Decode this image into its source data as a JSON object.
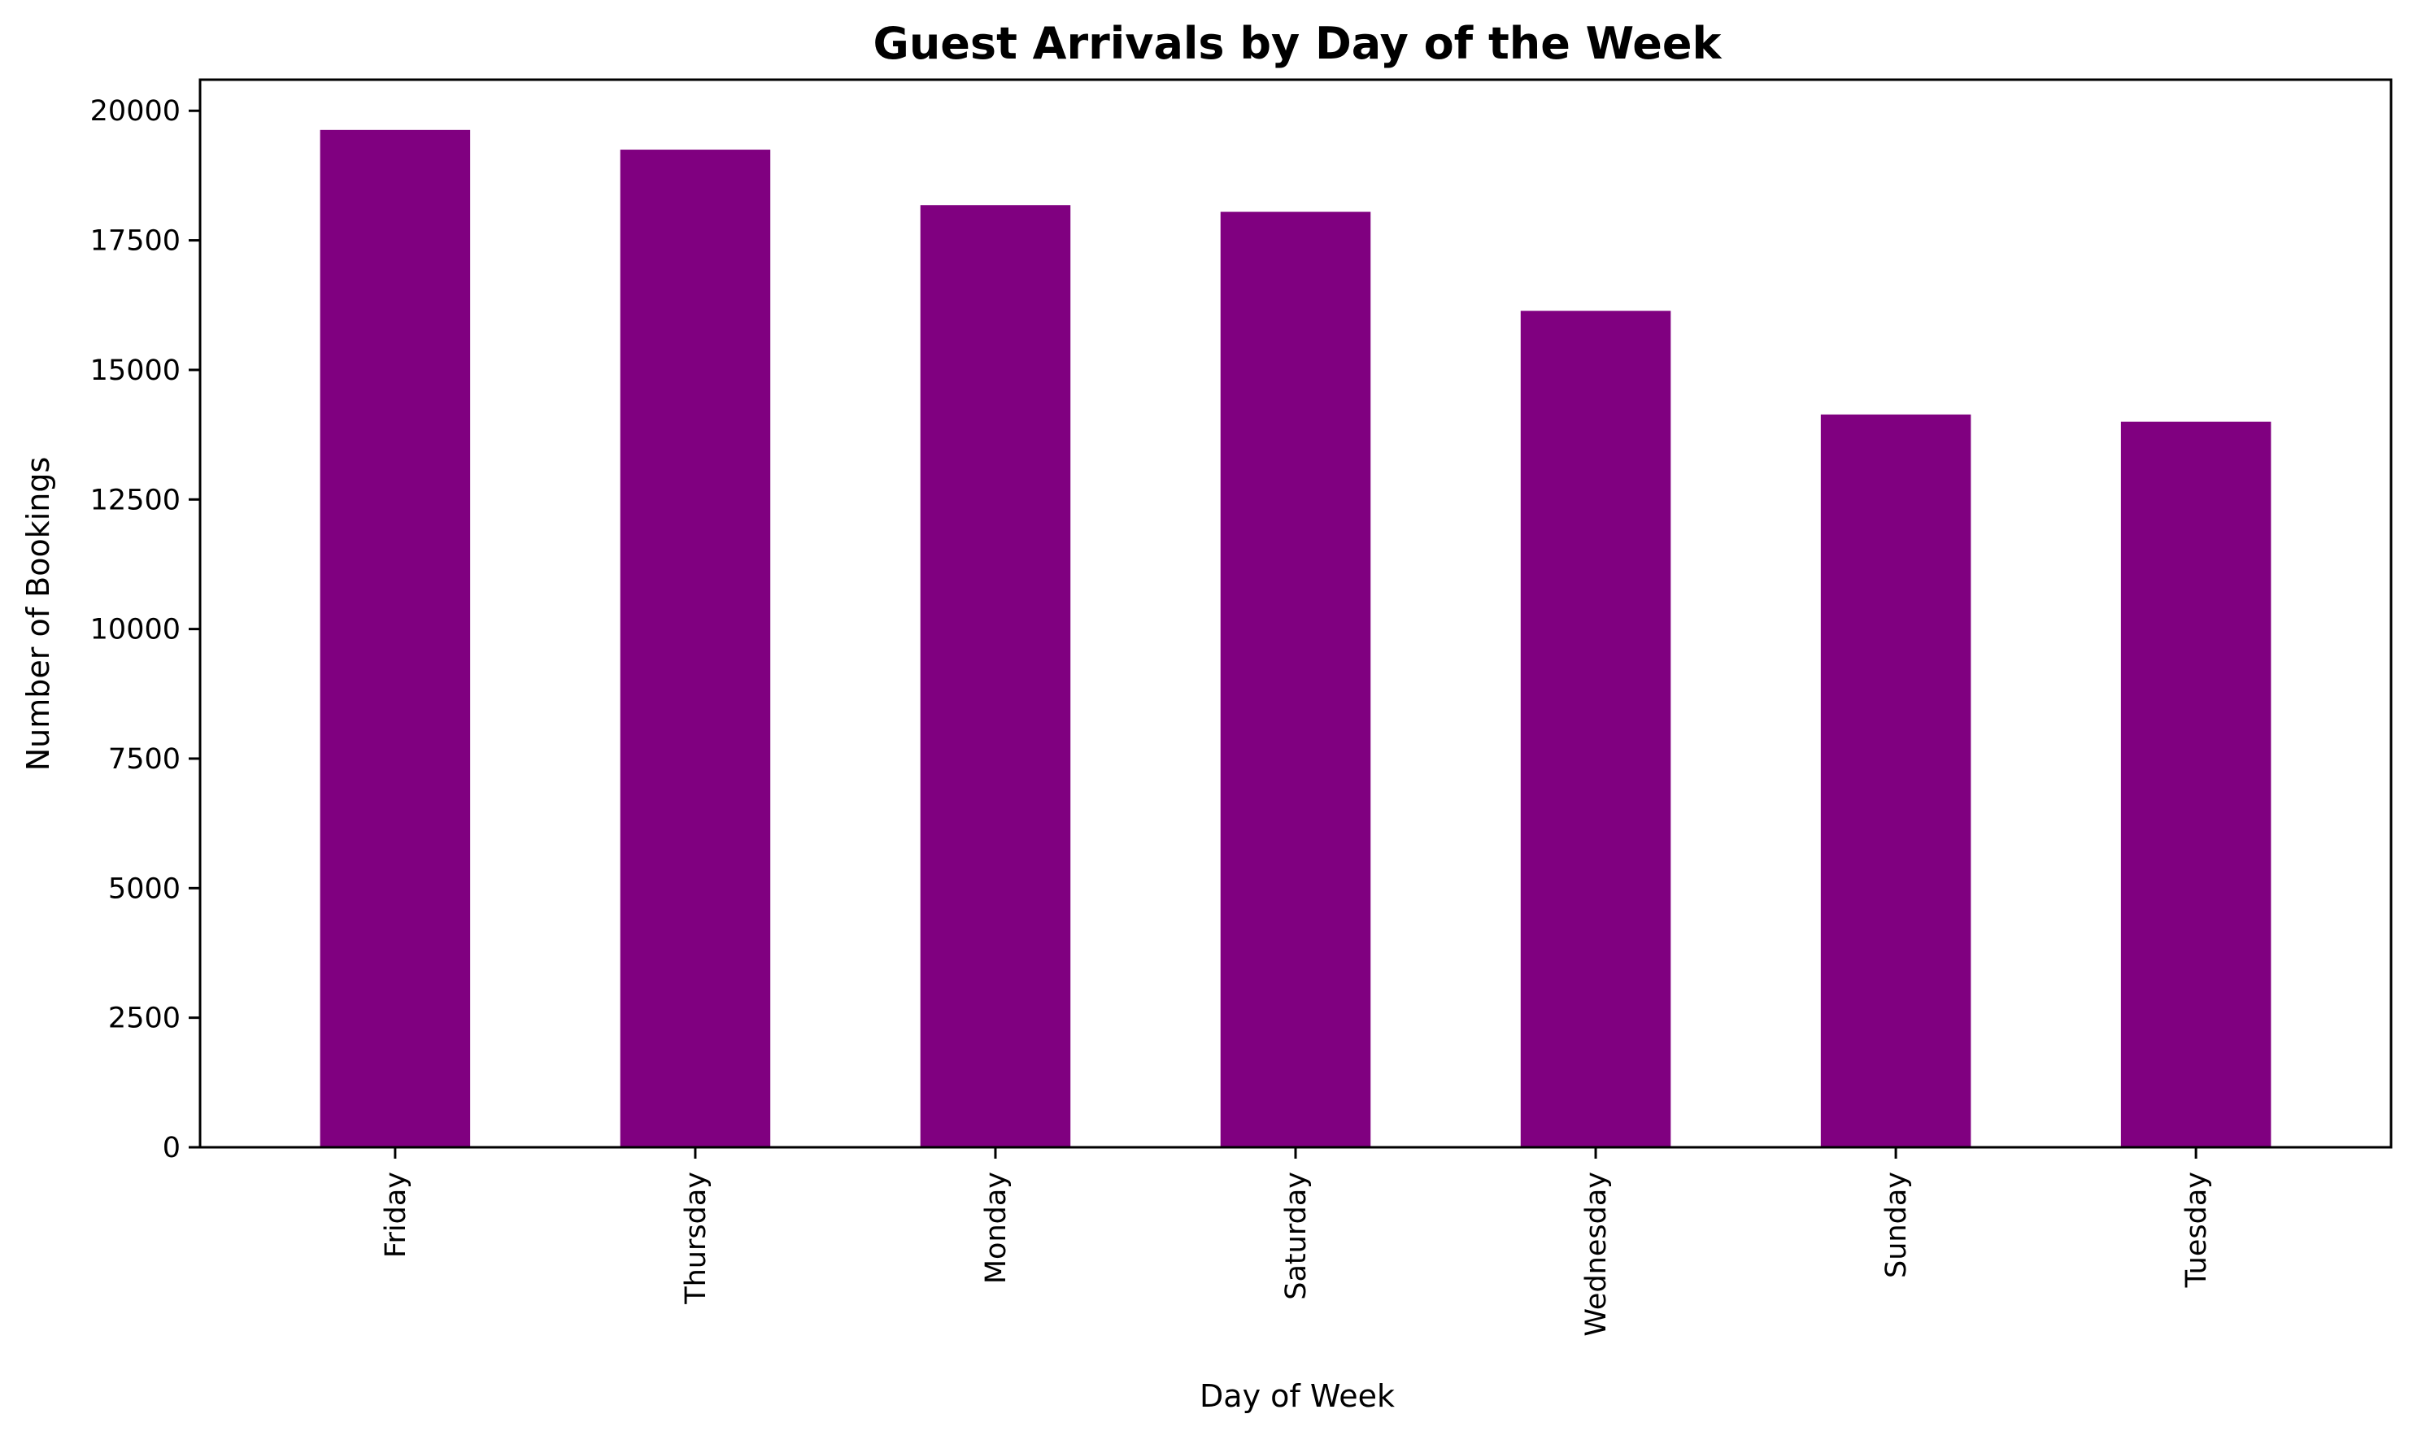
{
  "chart_data": {
    "type": "bar",
    "title": "Guest Arrivals by Day of the Week",
    "xlabel": "Day of Week",
    "ylabel": "Number of Bookings",
    "categories": [
      "Friday",
      "Thursday",
      "Monday",
      "Saturday",
      "Wednesday",
      "Sunday",
      "Tuesday"
    ],
    "values": [
      19630,
      19250,
      18180,
      18050,
      16140,
      14140,
      14000
    ],
    "ylim": [
      0,
      20600
    ],
    "yticks": [
      0,
      2500,
      5000,
      7500,
      10000,
      12500,
      15000,
      17500,
      20000
    ],
    "bar_color": "#800080",
    "grid": false,
    "legend": "none"
  }
}
